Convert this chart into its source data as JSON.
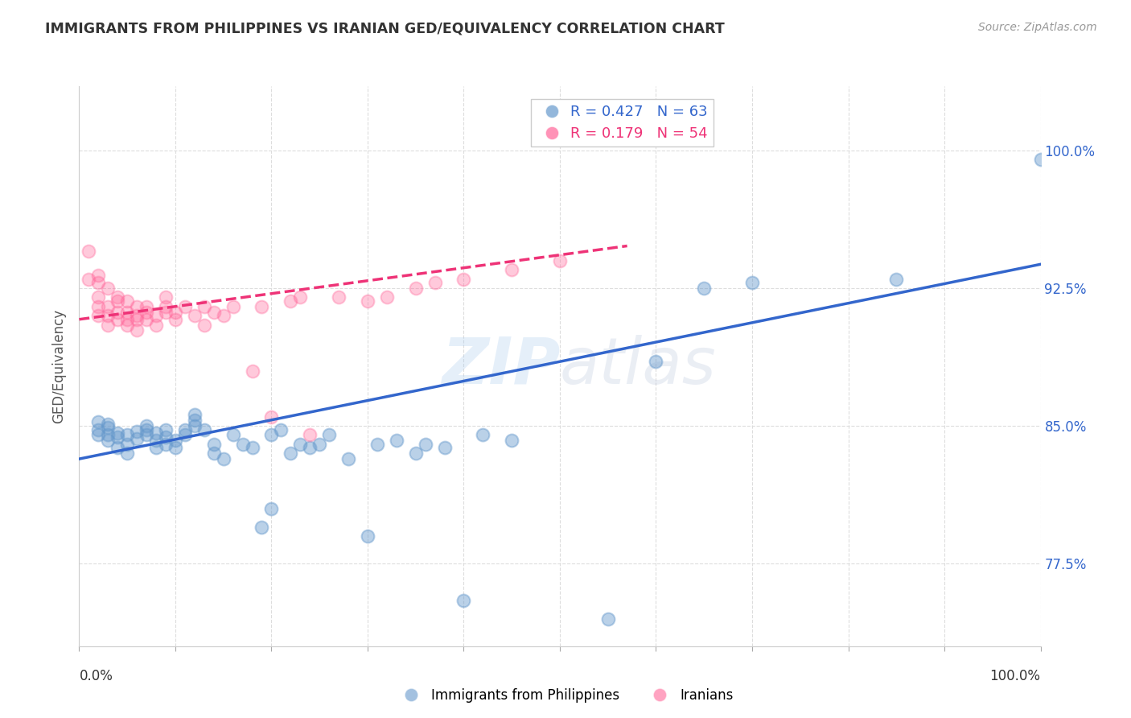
{
  "title": "IMMIGRANTS FROM PHILIPPINES VS IRANIAN GED/EQUIVALENCY CORRELATION CHART",
  "source": "Source: ZipAtlas.com",
  "ylabel": "GED/Equivalency",
  "yticks": [
    77.5,
    85.0,
    92.5,
    100.0
  ],
  "ytick_labels": [
    "77.5%",
    "85.0%",
    "92.5%",
    "100.0%"
  ],
  "xlim": [
    0.0,
    1.0
  ],
  "ylim": [
    73.0,
    103.5
  ],
  "blue_R": 0.427,
  "blue_N": 63,
  "pink_R": 0.179,
  "pink_N": 54,
  "blue_color": "#6699CC",
  "pink_color": "#FF6699",
  "blue_label": "Immigrants from Philippines",
  "pink_label": "Iranians",
  "watermark_zip": "ZIP",
  "watermark_atlas": "atlas",
  "blue_scatter_x": [
    0.02,
    0.02,
    0.02,
    0.03,
    0.03,
    0.03,
    0.03,
    0.04,
    0.04,
    0.04,
    0.05,
    0.05,
    0.05,
    0.06,
    0.06,
    0.07,
    0.07,
    0.07,
    0.08,
    0.08,
    0.08,
    0.09,
    0.09,
    0.09,
    0.1,
    0.1,
    0.11,
    0.11,
    0.12,
    0.12,
    0.12,
    0.13,
    0.14,
    0.14,
    0.15,
    0.16,
    0.17,
    0.18,
    0.19,
    0.2,
    0.2,
    0.21,
    0.22,
    0.23,
    0.24,
    0.25,
    0.26,
    0.28,
    0.3,
    0.31,
    0.33,
    0.35,
    0.36,
    0.38,
    0.4,
    0.42,
    0.45,
    0.55,
    0.6,
    0.65,
    0.7,
    0.85,
    1.0
  ],
  "blue_scatter_y": [
    84.5,
    84.8,
    85.2,
    84.2,
    84.5,
    84.9,
    85.1,
    83.8,
    84.4,
    84.6,
    83.5,
    84.0,
    84.5,
    84.3,
    84.7,
    84.5,
    84.8,
    85.0,
    83.8,
    84.2,
    84.6,
    84.0,
    84.4,
    84.8,
    83.8,
    84.2,
    84.5,
    84.8,
    85.0,
    85.3,
    85.6,
    84.8,
    83.5,
    84.0,
    83.2,
    84.5,
    84.0,
    83.8,
    79.5,
    80.5,
    84.5,
    84.8,
    83.5,
    84.0,
    83.8,
    84.0,
    84.5,
    83.2,
    79.0,
    84.0,
    84.2,
    83.5,
    84.0,
    83.8,
    75.5,
    84.5,
    84.2,
    74.5,
    88.5,
    92.5,
    92.8,
    93.0,
    99.5
  ],
  "pink_scatter_x": [
    0.01,
    0.01,
    0.02,
    0.02,
    0.02,
    0.02,
    0.02,
    0.03,
    0.03,
    0.03,
    0.03,
    0.04,
    0.04,
    0.04,
    0.04,
    0.05,
    0.05,
    0.05,
    0.05,
    0.06,
    0.06,
    0.06,
    0.06,
    0.07,
    0.07,
    0.07,
    0.08,
    0.08,
    0.09,
    0.09,
    0.09,
    0.1,
    0.1,
    0.11,
    0.12,
    0.13,
    0.13,
    0.14,
    0.15,
    0.16,
    0.18,
    0.19,
    0.2,
    0.22,
    0.23,
    0.24,
    0.27,
    0.3,
    0.32,
    0.35,
    0.37,
    0.4,
    0.45,
    0.5
  ],
  "pink_scatter_y": [
    93.0,
    94.5,
    91.0,
    91.5,
    92.0,
    92.8,
    93.2,
    90.5,
    91.0,
    91.5,
    92.5,
    90.8,
    91.2,
    91.8,
    92.0,
    90.5,
    90.8,
    91.2,
    91.8,
    90.2,
    90.8,
    91.0,
    91.5,
    90.8,
    91.2,
    91.5,
    90.5,
    91.0,
    91.2,
    91.5,
    92.0,
    90.8,
    91.2,
    91.5,
    91.0,
    91.5,
    90.5,
    91.2,
    91.0,
    91.5,
    88.0,
    91.5,
    85.5,
    91.8,
    92.0,
    84.5,
    92.0,
    91.8,
    92.0,
    92.5,
    92.8,
    93.0,
    93.5,
    94.0
  ],
  "blue_line_x": [
    0.0,
    1.0
  ],
  "blue_line_y": [
    83.2,
    93.8
  ],
  "pink_line_x": [
    0.0,
    0.57
  ],
  "pink_line_y": [
    90.8,
    94.8
  ],
  "grid_color": "#DDDDDD",
  "background_color": "#FFFFFF"
}
